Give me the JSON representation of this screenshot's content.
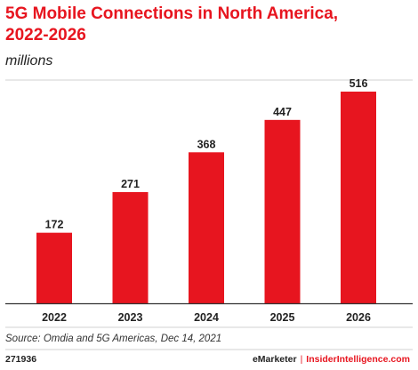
{
  "chart_data": {
    "type": "bar",
    "title": "5G Mobile Connections in North America, 2022-2026",
    "subtitle": "millions",
    "categories": [
      "2022",
      "2023",
      "2024",
      "2025",
      "2026"
    ],
    "values": [
      172,
      271,
      368,
      447,
      516
    ],
    "value_labels": [
      "172",
      "271",
      "368",
      "447",
      "516"
    ],
    "xlabel": "",
    "ylabel": "",
    "ylim": [
      0,
      516
    ],
    "grid": false,
    "legend": "none",
    "bar_color": "#e7151f"
  },
  "source": "Source: Omdia and 5G Americas, Dec 14, 2021",
  "chart_id": "271936",
  "footer": {
    "brand_left": "eMarketer",
    "separator": "|",
    "brand_right": "InsiderIntelligence.com"
  },
  "colors": {
    "accent": "#e7151f",
    "text": "#222222",
    "rule": "#d0d0d0",
    "baseline": "#333333"
  }
}
